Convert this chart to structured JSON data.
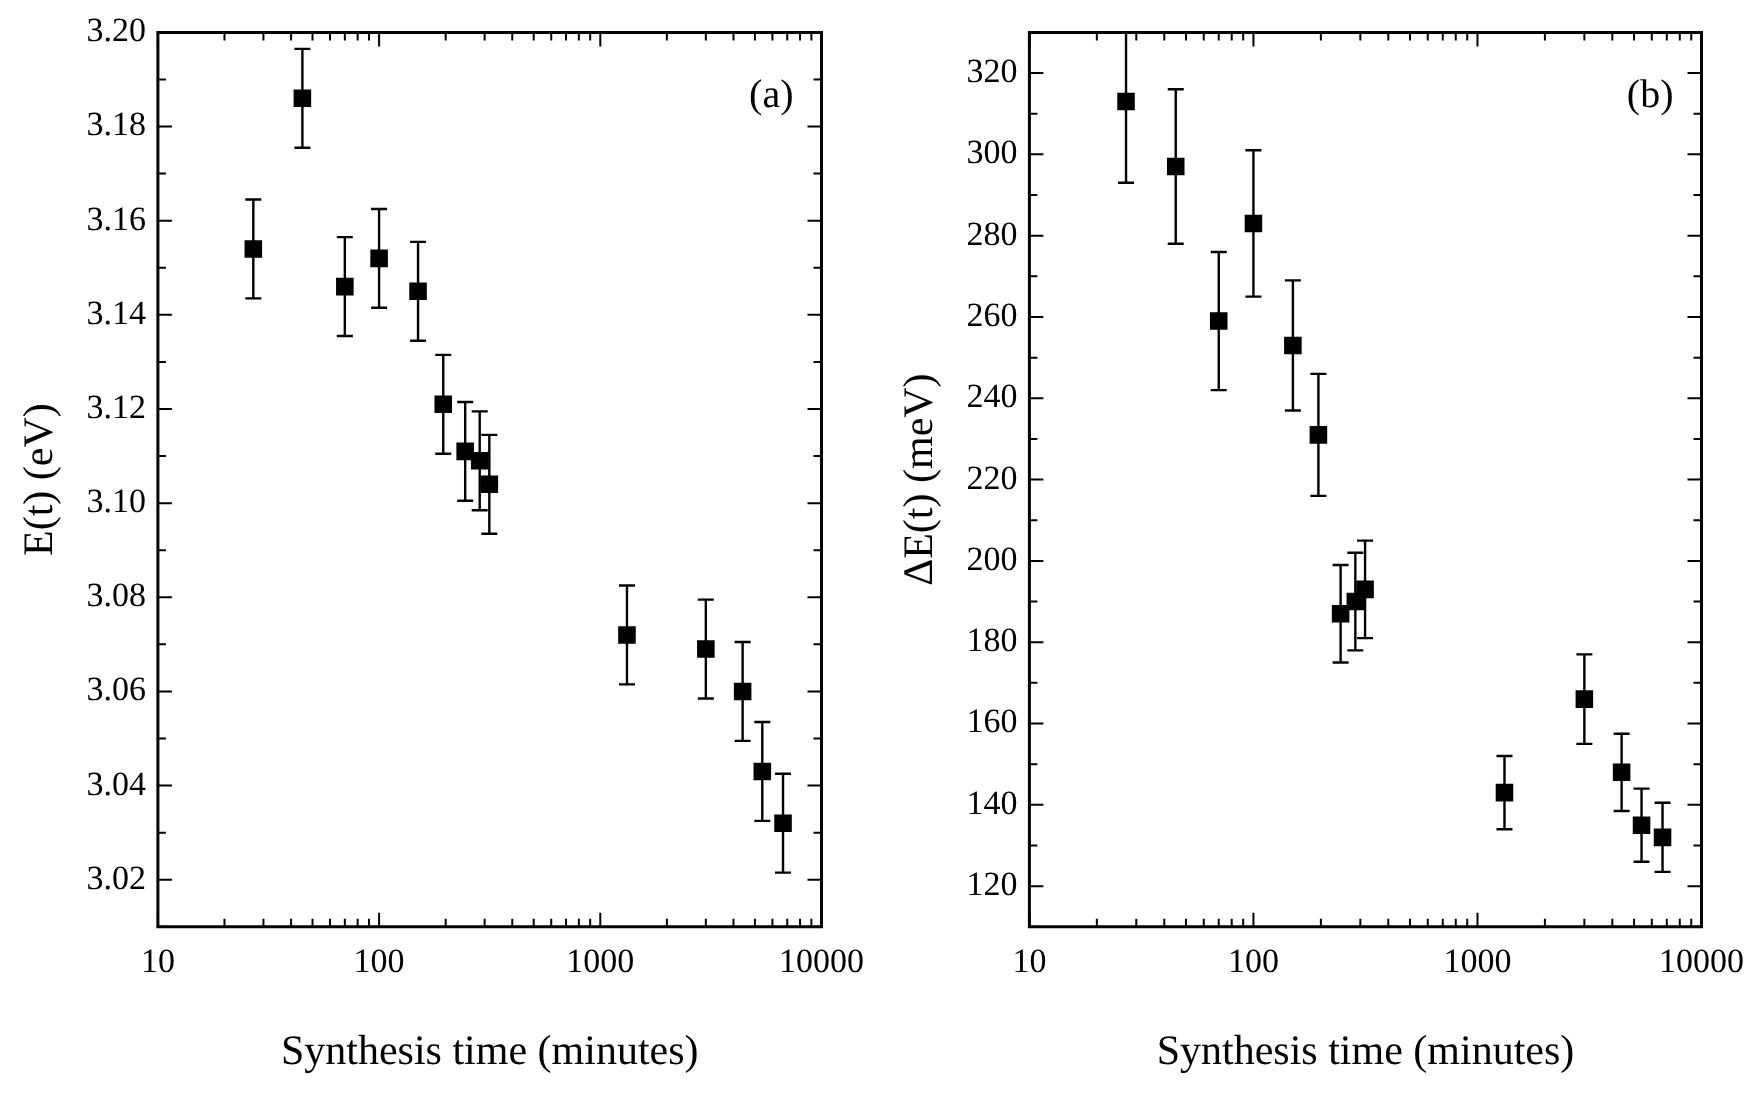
{
  "chart_data": [
    {
      "type": "scatter",
      "xlabel": "Synthesis time (minutes)",
      "ylabel": "E(t) (eV)",
      "annotations": [
        "(a)"
      ],
      "log": "x",
      "marker": "square",
      "grid": false,
      "x": [
        27,
        45,
        70,
        100,
        150,
        195,
        245,
        285,
        315,
        1320,
        3000,
        4400,
        5400,
        6700
      ],
      "series": [
        {
          "color": "#000000",
          "values": [
            3.154,
            3.186,
            3.146,
            3.152,
            3.145,
            3.121,
            3.111,
            3.109,
            3.104,
            3.072,
            3.069,
            3.06,
            3.043,
            3.032
          ],
          "errors": [
            0.0105,
            0.0105,
            0.0105,
            0.0105,
            0.0105,
            0.0105,
            0.0105,
            0.0105,
            0.0105,
            0.0105,
            0.0105,
            0.0105,
            0.0105,
            0.0105
          ]
        }
      ],
      "xlim": [
        10,
        10000
      ],
      "xticks": [
        10,
        100,
        1000,
        10000
      ],
      "ylim": [
        3.01,
        3.2
      ],
      "yticks": [
        {
          "value": 3.02,
          "label": "3.02"
        },
        {
          "value": 3.04,
          "label": "3.04"
        },
        {
          "value": 3.06,
          "label": "3.06"
        },
        {
          "value": 3.08,
          "label": "3.08"
        },
        {
          "value": 3.1,
          "label": "3.10"
        },
        {
          "value": 3.12,
          "label": "3.12"
        },
        {
          "value": 3.14,
          "label": "3.14"
        },
        {
          "value": 3.16,
          "label": "3.16"
        },
        {
          "value": 3.18,
          "label": "3.18"
        },
        {
          "value": 3.2,
          "label": "3.20"
        }
      ]
    },
    {
      "type": "scatter",
      "xlabel": "Synthesis time (minutes)",
      "ylabel": "ΔE(t) (meV)",
      "annotations": [
        "(b)"
      ],
      "log": "x",
      "marker": "square",
      "grid": false,
      "x": [
        27,
        45,
        70,
        100,
        150,
        195,
        245,
        285,
        315,
        1320,
        3000,
        4400,
        5400,
        6700
      ],
      "series": [
        {
          "color": "#000000",
          "values": [
            313,
            297,
            259,
            283,
            253,
            231,
            187,
            190,
            193,
            143,
            166,
            148,
            135,
            132
          ],
          "errors": [
            [
              293,
              330
            ],
            19,
            17,
            18,
            16,
            15,
            12,
            12,
            12,
            9,
            11,
            9.5,
            9,
            8.5
          ]
        }
      ],
      "xlim": [
        10,
        10000
      ],
      "xticks": [
        10,
        100,
        1000,
        10000
      ],
      "ylim": [
        110,
        330
      ],
      "yticks": [
        120,
        140,
        160,
        180,
        200,
        220,
        240,
        260,
        280,
        300,
        320
      ]
    }
  ]
}
